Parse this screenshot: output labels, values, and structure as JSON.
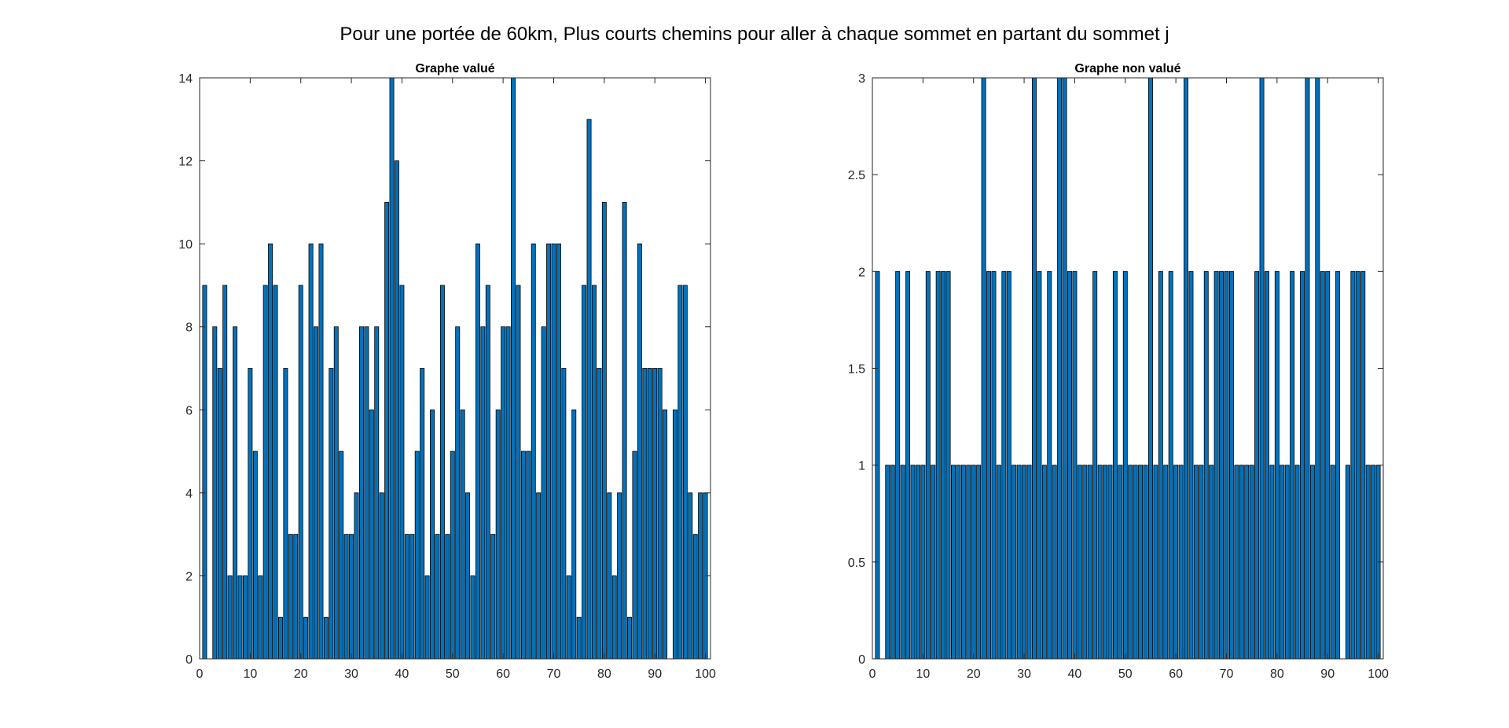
{
  "figure_title": "Pour une portée de 60km, Plus courts chemins pour aller à chaque sommet en partant du sommet j",
  "colors": {
    "bar_fill": "#0072BD",
    "bar_edge": "#000000",
    "axis": "#262626"
  },
  "chart_data": [
    {
      "type": "bar",
      "title": "Graphe valué",
      "xlabel": "",
      "ylabel": "",
      "xlim": [
        0,
        101
      ],
      "ylim": [
        0,
        14
      ],
      "xticks": [
        0,
        10,
        20,
        30,
        40,
        50,
        60,
        70,
        80,
        90,
        100
      ],
      "yticks": [
        0,
        2,
        4,
        6,
        8,
        10,
        12,
        14
      ],
      "ytick_labels": [
        "0",
        "2",
        "4",
        "6",
        "8",
        "10",
        "12",
        "14"
      ],
      "grid": false,
      "x": [
        1,
        2,
        3,
        4,
        5,
        6,
        7,
        8,
        9,
        10,
        11,
        12,
        13,
        14,
        15,
        16,
        17,
        18,
        19,
        20,
        21,
        22,
        23,
        24,
        25,
        26,
        27,
        28,
        29,
        30,
        31,
        32,
        33,
        34,
        35,
        36,
        37,
        38,
        39,
        40,
        41,
        42,
        43,
        44,
        45,
        46,
        47,
        48,
        49,
        50,
        51,
        52,
        53,
        54,
        55,
        56,
        57,
        58,
        59,
        60,
        61,
        62,
        63,
        64,
        65,
        66,
        67,
        68,
        69,
        70,
        71,
        72,
        73,
        74,
        75,
        76,
        77,
        78,
        79,
        80,
        81,
        82,
        83,
        84,
        85,
        86,
        87,
        88,
        89,
        90,
        91,
        92,
        93,
        94,
        95,
        96,
        97,
        98,
        99,
        100
      ],
      "values": [
        9,
        0,
        8,
        7,
        9,
        2,
        8,
        2,
        2,
        7,
        5,
        2,
        9,
        10,
        9,
        1,
        7,
        3,
        3,
        9,
        1,
        10,
        8,
        10,
        1,
        7,
        8,
        5,
        3,
        3,
        4,
        8,
        8,
        6,
        8,
        4,
        11,
        14,
        12,
        9,
        3,
        3,
        5,
        7,
        2,
        6,
        3,
        9,
        3,
        5,
        8,
        6,
        4,
        2,
        10,
        8,
        9,
        3,
        6,
        8,
        8,
        14,
        9,
        5,
        5,
        10,
        4,
        8,
        10,
        10,
        10,
        7,
        2,
        6,
        1,
        9,
        13,
        9,
        7,
        11,
        4,
        2,
        4,
        11,
        1,
        5,
        10,
        7,
        7,
        7,
        7,
        6,
        0,
        6,
        9,
        9,
        4,
        3,
        4,
        4
      ]
    },
    {
      "type": "bar",
      "title": "Graphe non valué",
      "xlabel": "",
      "ylabel": "",
      "xlim": [
        0,
        101
      ],
      "ylim": [
        0,
        3
      ],
      "xticks": [
        0,
        10,
        20,
        30,
        40,
        50,
        60,
        70,
        80,
        90,
        100
      ],
      "yticks": [
        0,
        0.5,
        1,
        1.5,
        2,
        2.5,
        3
      ],
      "ytick_labels": [
        "0",
        "0.5",
        "1",
        "1.5",
        "2",
        "2.5",
        "3"
      ],
      "grid": false,
      "x": [
        1,
        2,
        3,
        4,
        5,
        6,
        7,
        8,
        9,
        10,
        11,
        12,
        13,
        14,
        15,
        16,
        17,
        18,
        19,
        20,
        21,
        22,
        23,
        24,
        25,
        26,
        27,
        28,
        29,
        30,
        31,
        32,
        33,
        34,
        35,
        36,
        37,
        38,
        39,
        40,
        41,
        42,
        43,
        44,
        45,
        46,
        47,
        48,
        49,
        50,
        51,
        52,
        53,
        54,
        55,
        56,
        57,
        58,
        59,
        60,
        61,
        62,
        63,
        64,
        65,
        66,
        67,
        68,
        69,
        70,
        71,
        72,
        73,
        74,
        75,
        76,
        77,
        78,
        79,
        80,
        81,
        82,
        83,
        84,
        85,
        86,
        87,
        88,
        89,
        90,
        91,
        92,
        93,
        94,
        95,
        96,
        97,
        98,
        99,
        100
      ],
      "values": [
        2,
        0,
        1,
        1,
        2,
        1,
        2,
        1,
        1,
        1,
        2,
        1,
        2,
        2,
        2,
        1,
        1,
        1,
        1,
        1,
        1,
        3,
        2,
        2,
        1,
        2,
        2,
        1,
        1,
        1,
        1,
        3,
        2,
        1,
        2,
        1,
        3,
        3,
        2,
        2,
        1,
        1,
        1,
        2,
        1,
        1,
        1,
        2,
        1,
        2,
        1,
        1,
        1,
        1,
        3,
        1,
        2,
        1,
        2,
        1,
        1,
        3,
        2,
        1,
        1,
        2,
        1,
        2,
        2,
        2,
        2,
        1,
        1,
        1,
        1,
        2,
        3,
        2,
        1,
        2,
        1,
        1,
        2,
        1,
        2,
        3,
        1,
        3,
        2,
        2,
        1,
        2,
        0,
        1,
        2,
        2,
        2,
        1,
        1,
        1
      ]
    }
  ]
}
